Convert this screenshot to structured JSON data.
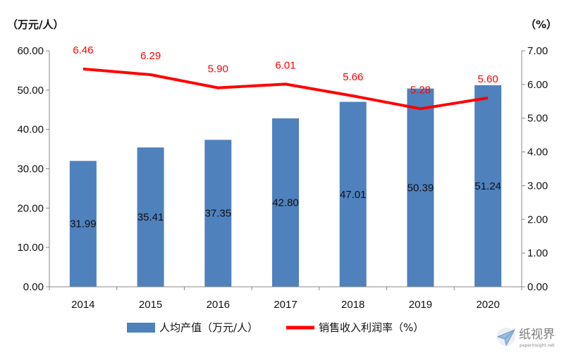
{
  "chart_data": {
    "type": "bar",
    "categories": [
      "2014",
      "2015",
      "2016",
      "2017",
      "2018",
      "2019",
      "2020"
    ],
    "series": [
      {
        "name": "人均产值（万元/人）",
        "type": "bar",
        "axis": "left",
        "values": [
          31.99,
          35.41,
          37.35,
          42.8,
          47.01,
          50.39,
          51.24
        ],
        "labels": [
          "31.99",
          "35.41",
          "37.35",
          "42.80",
          "47.01",
          "50.39",
          "51.24"
        ],
        "color": "#4f81bd"
      },
      {
        "name": "销售收入利润率（%）",
        "type": "line",
        "axis": "right",
        "values": [
          6.46,
          6.29,
          5.9,
          6.01,
          5.66,
          5.28,
          5.6
        ],
        "labels": [
          "6.46",
          "6.29",
          "5.90",
          "6.01",
          "5.66",
          "5.28",
          "5.60"
        ],
        "color": "#ff0000"
      }
    ],
    "left_axis": {
      "unit": "（万元/人）",
      "ylim": [
        0,
        60
      ],
      "ticks": [
        "0.00",
        "10.00",
        "20.00",
        "30.00",
        "40.00",
        "50.00",
        "60.00"
      ]
    },
    "right_axis": {
      "unit": "（%）",
      "ylim": [
        0,
        7
      ],
      "ticks": [
        "0.00",
        "1.00",
        "2.00",
        "3.00",
        "4.00",
        "5.00",
        "6.00",
        "7.00"
      ]
    },
    "grid": false,
    "legend": "bottom"
  },
  "watermark": {
    "brand": "纸视界",
    "url": "paperinsight.net",
    "icon": "paper-plane-logo"
  }
}
